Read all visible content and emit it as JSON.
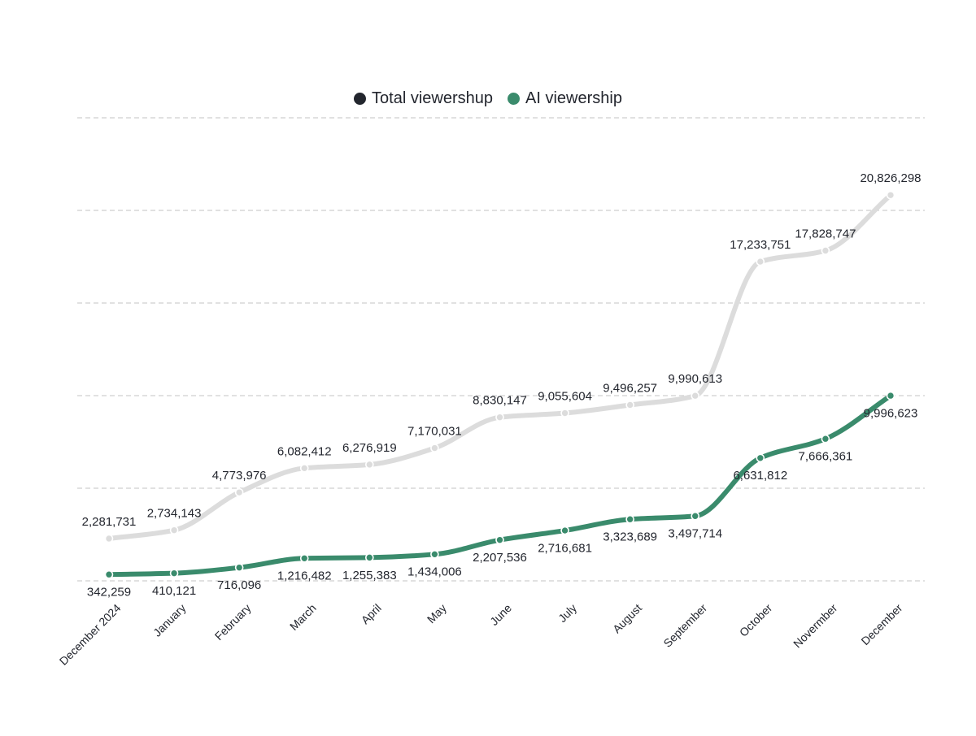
{
  "legend": {
    "items": [
      {
        "label": "Total viewershup",
        "color": "#23262e"
      },
      {
        "label": "AI viewership",
        "color": "#3a8b6c"
      }
    ]
  },
  "chart_data": {
    "type": "line",
    "title": "",
    "xlabel": "",
    "ylabel": "",
    "categories": [
      "December 2024",
      "January",
      "February",
      "March",
      "April",
      "May",
      "June",
      "July",
      "August",
      "September",
      "October",
      "Novermber",
      "December"
    ],
    "ylim": [
      0,
      25000000
    ],
    "grid": true,
    "legend_position": "top",
    "series": [
      {
        "name": "Total viewershup",
        "color": "#dcdcdc",
        "values": [
          2281731,
          2734143,
          4773976,
          6082412,
          6276919,
          7170031,
          8830147,
          9055604,
          9496257,
          9990613,
          17233751,
          17828747,
          20826298
        ],
        "labels": [
          "2,281,731",
          "2,734,143",
          "4,773,976",
          "6,082,412",
          "6,276,919",
          "7,170,031",
          "8,830,147",
          "9,055,604",
          "9,496,257",
          "9,990,613",
          "17,233,751",
          "17,828,747",
          "20,826,298"
        ]
      },
      {
        "name": "AI viewership",
        "color": "#3a8b6c",
        "values": [
          342259,
          410121,
          716096,
          1216482,
          1255383,
          1434006,
          2207536,
          2716681,
          3323689,
          3497714,
          6631812,
          7666361,
          9996623
        ],
        "labels": [
          "342,259",
          "410,121",
          "716,096",
          "1,216,482",
          "1,255,383",
          "1,434,006",
          "2,207,536",
          "2,716,681",
          "3,323,689",
          "3,497,714",
          "6,631,812",
          "7,666,361",
          "9,996,623"
        ]
      }
    ]
  }
}
